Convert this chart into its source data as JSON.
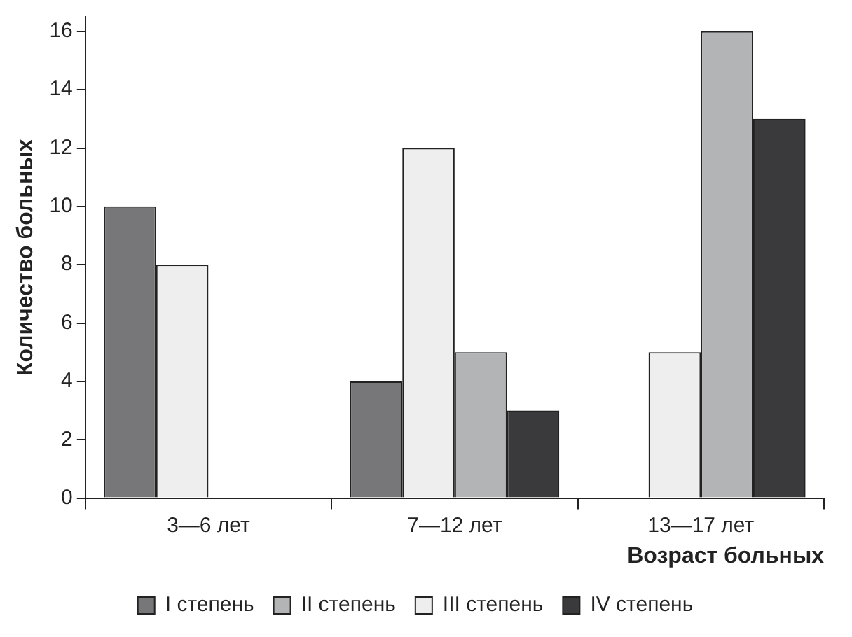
{
  "chart_data": {
    "type": "bar",
    "xlabel": "Возраст больных",
    "ylabel": "Количество больных",
    "categories": [
      "3—6 лет",
      "7—12 лет",
      "13—17 лет"
    ],
    "series": [
      {
        "name": "I степень",
        "color": "#77777a",
        "values": [
          10,
          4,
          0
        ]
      },
      {
        "name": "III степень",
        "color": "#eeeeee",
        "values": [
          8,
          12,
          5
        ]
      },
      {
        "name": "II степень",
        "color": "#b3b4b6",
        "values": [
          0,
          5,
          16
        ]
      },
      {
        "name": "IV степень",
        "color": "#3a3a3c",
        "values": [
          0,
          3,
          13
        ]
      }
    ],
    "ylim": [
      0,
      16.5
    ],
    "yticks": [
      0,
      2,
      4,
      6,
      8,
      10,
      12,
      14,
      16
    ],
    "grid": false,
    "legend": "bottom"
  }
}
